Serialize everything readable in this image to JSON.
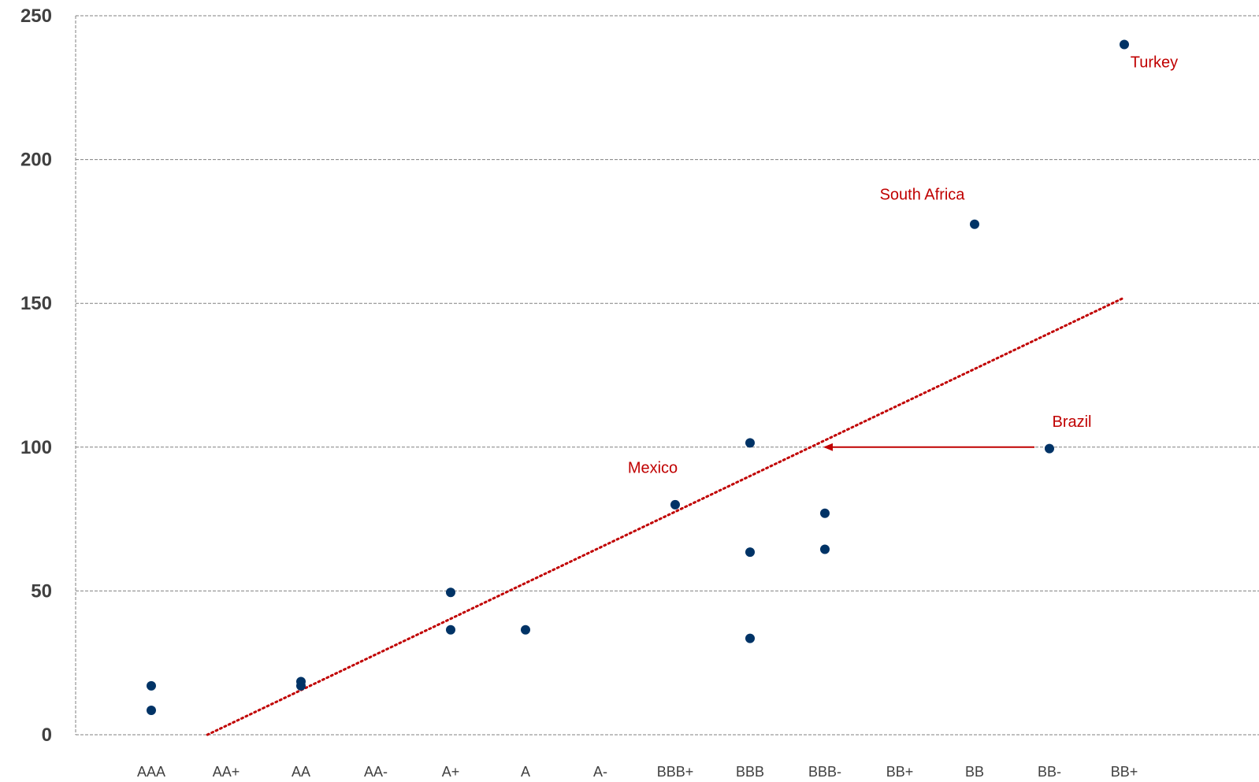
{
  "chart_data": {
    "type": "scatter",
    "title": "",
    "xlabel": "",
    "ylabel": "",
    "ylim": [
      0,
      250
    ],
    "y_ticks": [
      "0",
      "50",
      "100",
      "150",
      "200",
      "250"
    ],
    "x_categories": [
      "AAA",
      "AA+",
      "AA",
      "AA-",
      "A+",
      "A",
      "A-",
      "BBB+",
      "BBB",
      "BBB-",
      "BB+",
      "BB",
      "BB-",
      "BB+"
    ],
    "grid": "horizontal dashed",
    "points": [
      {
        "x": 0,
        "y": 17
      },
      {
        "x": 0,
        "y": 8.5
      },
      {
        "x": 2,
        "y": 18.5
      },
      {
        "x": 2,
        "y": 17
      },
      {
        "x": 4,
        "y": 49.5
      },
      {
        "x": 4,
        "y": 36.5
      },
      {
        "x": 5,
        "y": 36.5
      },
      {
        "x": 7,
        "y": 80
      },
      {
        "x": 8,
        "y": 101.5
      },
      {
        "x": 8,
        "y": 63.5
      },
      {
        "x": 8,
        "y": 33.5
      },
      {
        "x": 9,
        "y": 77
      },
      {
        "x": 9,
        "y": 64.5
      },
      {
        "x": 11,
        "y": 177.5
      },
      {
        "x": 12,
        "y": 99.5
      },
      {
        "x": 13,
        "y": 240
      }
    ],
    "trendline": {
      "x_start": 0.75,
      "y_start": 0,
      "x_end": 13,
      "y_end": 152
    },
    "annotations": [
      {
        "label": "Turkey",
        "x": 13.4,
        "y": 234
      },
      {
        "label": "South Africa",
        "x": 10.3,
        "y": 188
      },
      {
        "label": "Brazil",
        "x": 12.3,
        "y": 109
      },
      {
        "label": "Mexico",
        "x": 6.7,
        "y": 93
      }
    ],
    "arrow": {
      "from_x": 11.8,
      "from_y": 100,
      "to_x": 9.0,
      "to_y": 100
    },
    "colors": {
      "point": "#003366",
      "trend": "#c00000",
      "annotation": "#c00000",
      "grid": "#808080",
      "tick": "#404040"
    }
  }
}
